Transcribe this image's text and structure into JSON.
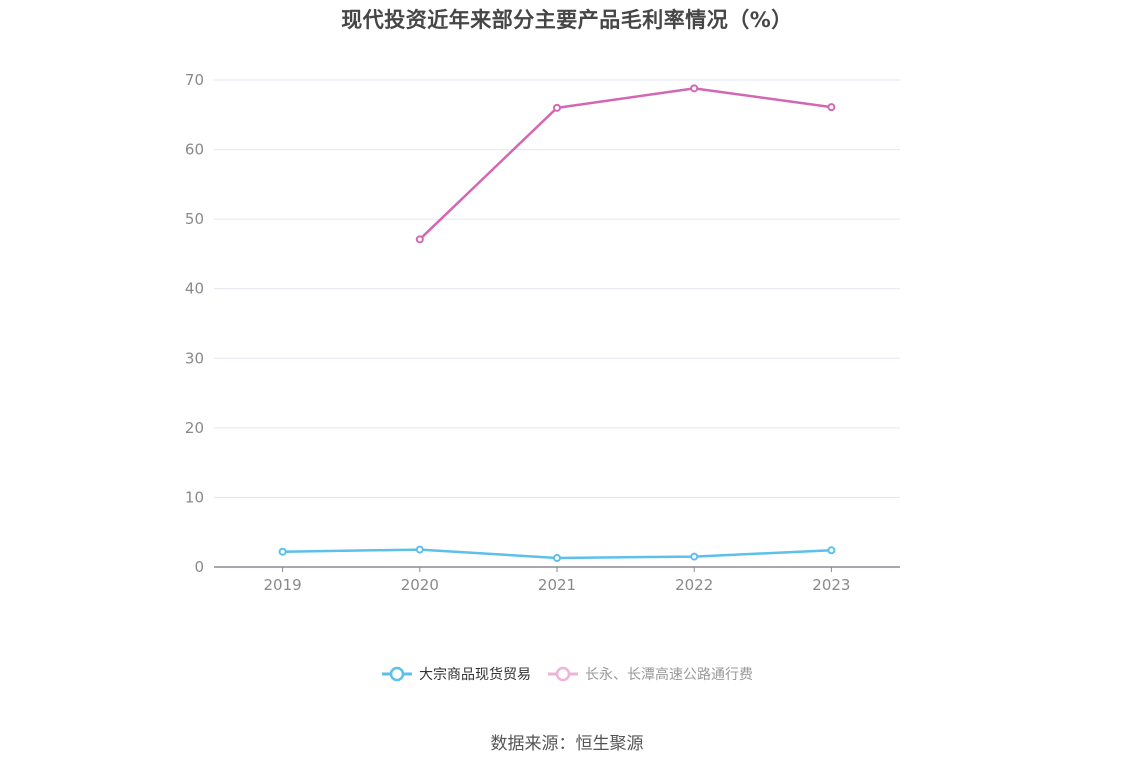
{
  "chart_data": {
    "type": "line",
    "title": "现代投资近年来部分主要产品毛利率情况（%）",
    "categories": [
      "2019",
      "2020",
      "2021",
      "2022",
      "2023"
    ],
    "ylim": [
      0,
      70
    ],
    "yticks": [
      "0",
      "10",
      "20",
      "30",
      "40",
      "50",
      "60",
      "70"
    ],
    "grid": true,
    "legend_position": "bottom-center",
    "series": [
      {
        "name": "大宗商品现货贸易",
        "color": "#5bc0eb",
        "values": [
          2.2,
          2.5,
          1.3,
          1.5,
          2.4
        ]
      },
      {
        "name": "长永、长潭高速公路通行费",
        "color": "#d467b4",
        "legend_color": "#efb2d8",
        "values": [
          null,
          47.1,
          66.0,
          68.8,
          66.1
        ]
      }
    ]
  },
  "footer": {
    "source": "数据来源：恒生聚源"
  }
}
